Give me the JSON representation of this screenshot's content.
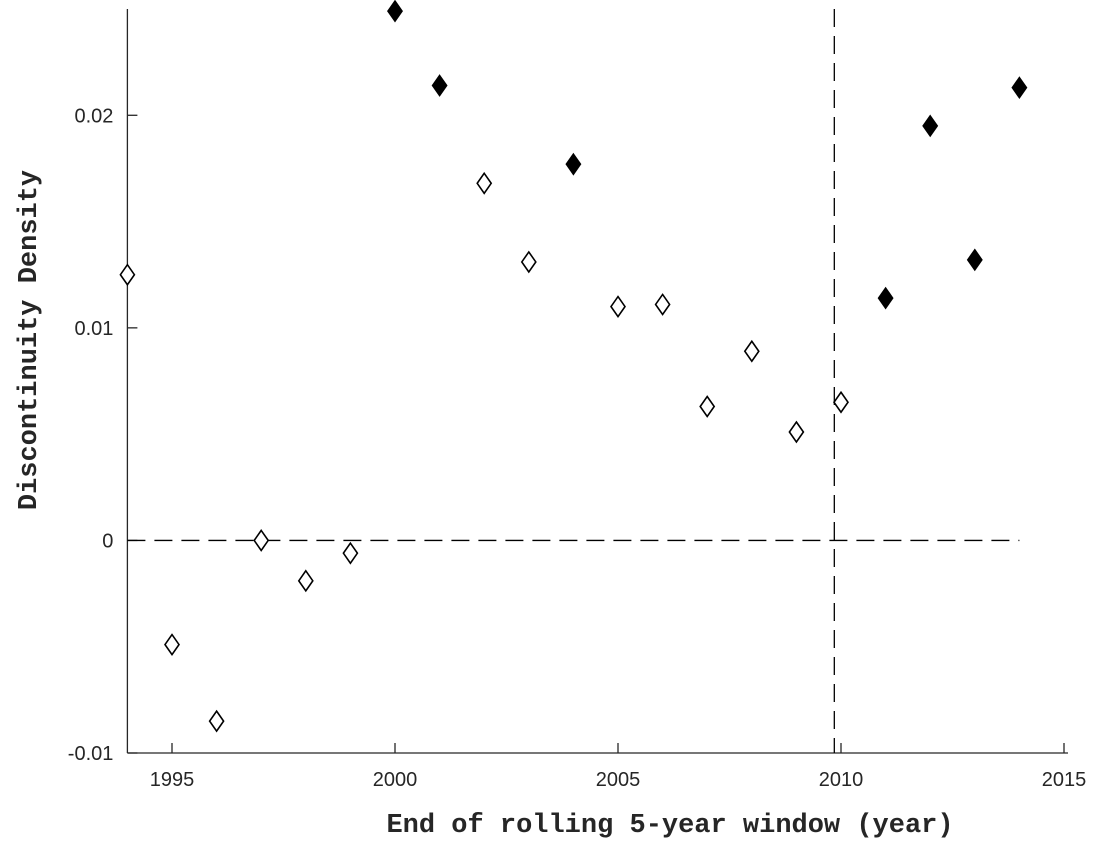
{
  "chart_data": {
    "type": "scatter",
    "xlabel": "End of rolling 5-year window (year)",
    "ylabel": "Discontinuity Density",
    "xlim": [
      1994,
      2015
    ],
    "xticks": [
      1995,
      2000,
      2005,
      2010,
      2015
    ],
    "ylim": [
      -0.01,
      0.025
    ],
    "yticks": [
      -0.01,
      0,
      0.01,
      0.02
    ],
    "grid": false,
    "series": [
      {
        "color": "#000000",
        "marker": "diamond",
        "filled": false,
        "x": [
          1994,
          1995,
          1996,
          1997,
          1998,
          1999,
          2002,
          2003,
          2005,
          2006,
          2007,
          2008,
          2009,
          2010
        ],
        "values": [
          0.0125,
          -0.0049,
          -0.0085,
          0.0,
          -0.0019,
          -0.0006,
          0.0168,
          0.0131,
          0.011,
          0.0111,
          0.0063,
          0.0089,
          0.0051,
          0.0065
        ]
      },
      {
        "color": "#000000",
        "marker": "diamond",
        "filled": true,
        "x": [
          2000,
          2001,
          2004,
          2011,
          2012,
          2013,
          2014
        ],
        "values": [
          0.0249,
          0.0214,
          0.0177,
          0.0114,
          0.0195,
          0.0132,
          0.0213
        ]
      }
    ],
    "reference_lines": {
      "horizontal": {
        "y": 0,
        "x_end": 2014
      },
      "vertical": {
        "x": 2009.85
      }
    }
  }
}
